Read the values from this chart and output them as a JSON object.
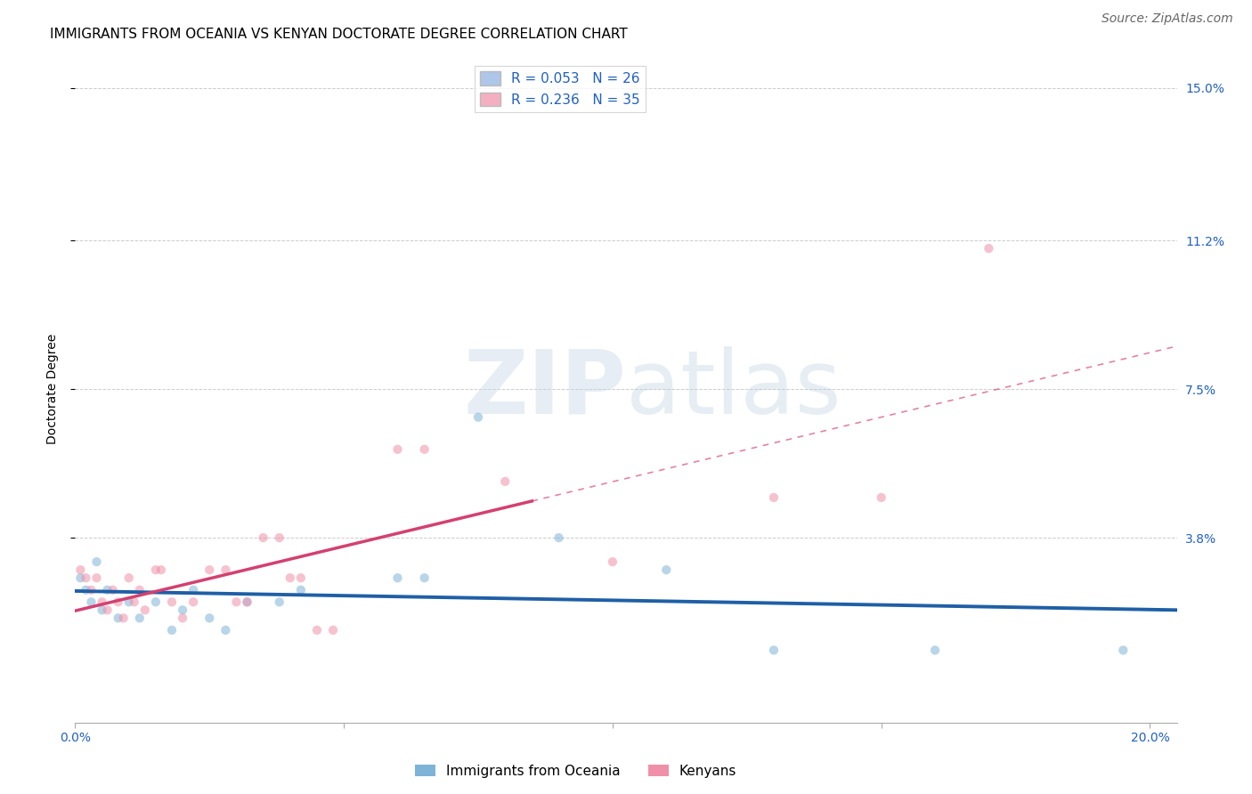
{
  "title": "IMMIGRANTS FROM OCEANIA VS KENYAN DOCTORATE DEGREE CORRELATION CHART",
  "source": "Source: ZipAtlas.com",
  "ylabel": "Doctorate Degree",
  "xlim": [
    0.0,
    0.205
  ],
  "ylim": [
    -0.008,
    0.158
  ],
  "xticks": [
    0.0,
    0.05,
    0.1,
    0.15,
    0.2
  ],
  "xticklabels": [
    "0.0%",
    "",
    "",
    "",
    "20.0%"
  ],
  "ytick_positions": [
    0.038,
    0.075,
    0.112,
    0.15
  ],
  "ytick_labels": [
    "3.8%",
    "7.5%",
    "11.2%",
    "15.0%"
  ],
  "legend_entry1": "R = 0.053   N = 26",
  "legend_entry2": "R = 0.236   N = 35",
  "legend_color1": "#aec6e8",
  "legend_color2": "#f4afc0",
  "series1_label": "Immigrants from Oceania",
  "series2_label": "Kenyans",
  "dot_color1": "#7eb3d8",
  "dot_color2": "#f090a8",
  "line_color1": "#1f5fa6",
  "line_color2": "#d44070",
  "dot_size": 55,
  "dot_alpha": 0.55,
  "background_color": "#ffffff",
  "grid_color": "#cccccc",
  "blue_points": [
    [
      0.001,
      0.028
    ],
    [
      0.002,
      0.025
    ],
    [
      0.003,
      0.022
    ],
    [
      0.004,
      0.032
    ],
    [
      0.005,
      0.02
    ],
    [
      0.006,
      0.025
    ],
    [
      0.008,
      0.018
    ],
    [
      0.01,
      0.022
    ],
    [
      0.012,
      0.018
    ],
    [
      0.015,
      0.022
    ],
    [
      0.018,
      0.015
    ],
    [
      0.02,
      0.02
    ],
    [
      0.022,
      0.025
    ],
    [
      0.025,
      0.018
    ],
    [
      0.028,
      0.015
    ],
    [
      0.032,
      0.022
    ],
    [
      0.038,
      0.022
    ],
    [
      0.042,
      0.025
    ],
    [
      0.06,
      0.028
    ],
    [
      0.065,
      0.028
    ],
    [
      0.075,
      0.068
    ],
    [
      0.09,
      0.038
    ],
    [
      0.11,
      0.03
    ],
    [
      0.13,
      0.01
    ],
    [
      0.16,
      0.01
    ],
    [
      0.195,
      0.01
    ]
  ],
  "pink_points": [
    [
      0.001,
      0.03
    ],
    [
      0.002,
      0.028
    ],
    [
      0.003,
      0.025
    ],
    [
      0.004,
      0.028
    ],
    [
      0.005,
      0.022
    ],
    [
      0.006,
      0.02
    ],
    [
      0.007,
      0.025
    ],
    [
      0.008,
      0.022
    ],
    [
      0.009,
      0.018
    ],
    [
      0.01,
      0.028
    ],
    [
      0.011,
      0.022
    ],
    [
      0.012,
      0.025
    ],
    [
      0.013,
      0.02
    ],
    [
      0.015,
      0.03
    ],
    [
      0.016,
      0.03
    ],
    [
      0.018,
      0.022
    ],
    [
      0.02,
      0.018
    ],
    [
      0.022,
      0.022
    ],
    [
      0.025,
      0.03
    ],
    [
      0.028,
      0.03
    ],
    [
      0.03,
      0.022
    ],
    [
      0.032,
      0.022
    ],
    [
      0.035,
      0.038
    ],
    [
      0.038,
      0.038
    ],
    [
      0.04,
      0.028
    ],
    [
      0.042,
      0.028
    ],
    [
      0.045,
      0.015
    ],
    [
      0.048,
      0.015
    ],
    [
      0.06,
      0.06
    ],
    [
      0.065,
      0.06
    ],
    [
      0.08,
      0.052
    ],
    [
      0.1,
      0.032
    ],
    [
      0.13,
      0.048
    ],
    [
      0.15,
      0.048
    ],
    [
      0.17,
      0.11
    ]
  ],
  "title_fontsize": 11,
  "axis_label_fontsize": 10,
  "tick_fontsize": 10,
  "legend_fontsize": 11,
  "source_fontsize": 10,
  "pink_line_solid_end": 0.085,
  "blue_line_start": 0.0,
  "blue_line_end": 0.205
}
